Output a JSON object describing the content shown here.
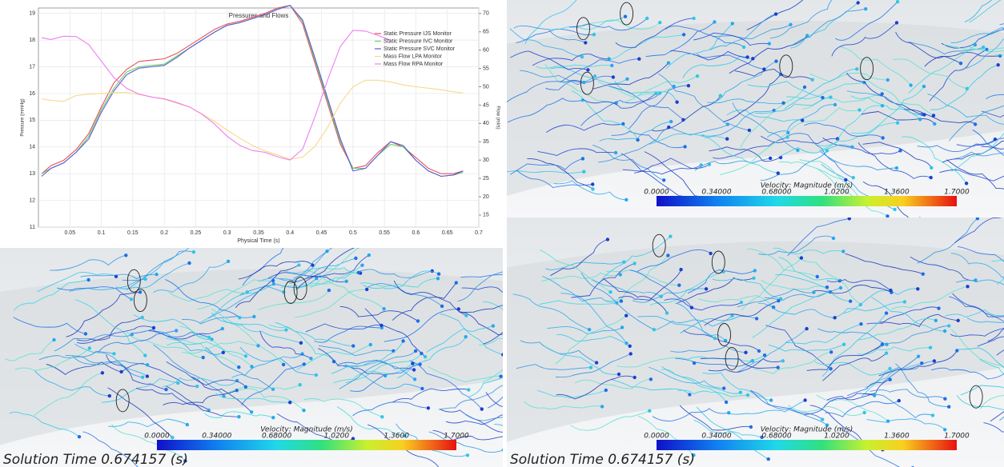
{
  "chart_data": {
    "type": "line",
    "title": "Pressures and Flows",
    "x_label": "Physical Time (s)",
    "y_label": "Pressure (mmHg)",
    "y2_label": "Flow (ml/s)",
    "x": [
      0.005,
      0.02,
      0.04,
      0.06,
      0.08,
      0.1,
      0.12,
      0.14,
      0.16,
      0.18,
      0.2,
      0.22,
      0.24,
      0.26,
      0.28,
      0.3,
      0.32,
      0.34,
      0.36,
      0.38,
      0.4,
      0.42,
      0.44,
      0.46,
      0.48,
      0.5,
      0.52,
      0.54,
      0.56,
      0.58,
      0.6,
      0.62,
      0.64,
      0.66,
      0.675
    ],
    "series": [
      {
        "name": "Static Pressure IJS Monitor",
        "color": "#e8505b",
        "values": [
          13.0,
          13.3,
          13.5,
          13.9,
          14.5,
          15.5,
          16.4,
          16.9,
          17.2,
          17.25,
          17.3,
          17.5,
          17.8,
          18.1,
          18.4,
          18.6,
          18.7,
          18.85,
          19.0,
          19.2,
          19.3,
          18.6,
          17.1,
          15.6,
          14.1,
          13.2,
          13.3,
          13.8,
          14.2,
          14.0,
          13.6,
          13.2,
          13.0,
          13.0,
          13.1
        ]
      },
      {
        "name": "Static Pressure IVC Monitor",
        "color": "#6ad06a",
        "values": [
          13.0,
          13.2,
          13.4,
          13.8,
          14.4,
          15.4,
          16.2,
          16.8,
          17.0,
          17.05,
          17.1,
          17.4,
          17.7,
          18.0,
          18.3,
          18.55,
          18.65,
          18.8,
          18.95,
          19.15,
          19.3,
          18.7,
          17.2,
          15.7,
          14.2,
          13.2,
          13.2,
          13.7,
          14.1,
          14.0,
          13.5,
          13.1,
          12.9,
          12.95,
          13.05
        ]
      },
      {
        "name": "Static Pressure SVC Monitor",
        "color": "#5a5ad8",
        "values": [
          12.9,
          13.2,
          13.4,
          13.8,
          14.3,
          15.3,
          16.1,
          16.7,
          16.95,
          17.0,
          17.05,
          17.35,
          17.7,
          18.0,
          18.3,
          18.55,
          18.65,
          18.8,
          18.95,
          19.15,
          19.3,
          18.75,
          17.3,
          15.8,
          14.3,
          13.1,
          13.2,
          13.7,
          14.2,
          14.05,
          13.5,
          13.1,
          12.9,
          12.95,
          13.1
        ]
      },
      {
        "name": "Mass Flow LPA Monitor",
        "color": "#f6d98a",
        "axis": "y2",
        "values": [
          46.7,
          46.3,
          46.0,
          47.6,
          48.0,
          48.2,
          48.4,
          48.4,
          47.9,
          47.2,
          46.6,
          45.5,
          44.5,
          42.6,
          40.5,
          38.2,
          36.0,
          34.0,
          32.5,
          31.4,
          30.2,
          30.8,
          33.8,
          39.0,
          45.5,
          50.0,
          51.8,
          51.8,
          51.3,
          50.5,
          50.0,
          49.6,
          49.2,
          48.6,
          48.3
        ]
      },
      {
        "name": "Mass Flow RPA Monitor",
        "color": "#f07ef0",
        "axis": "y2",
        "values": [
          63.4,
          62.9,
          63.8,
          63.7,
          61.5,
          57.0,
          52.5,
          49.6,
          48.0,
          47.2,
          46.7,
          45.7,
          44.5,
          42.5,
          39.8,
          36.5,
          34.0,
          32.6,
          32.1,
          30.9,
          30.0,
          33.0,
          42.0,
          52.0,
          61.0,
          65.4,
          65.2,
          64.0,
          62.7,
          null,
          null,
          null,
          null,
          null,
          null
        ]
      }
    ],
    "xlim": [
      0,
      0.7
    ],
    "xticks": [
      0.05,
      0.1,
      0.15,
      0.2,
      0.25,
      0.3,
      0.35,
      0.4,
      0.45,
      0.5,
      0.55,
      0.6,
      0.65,
      0.7
    ],
    "ylim": [
      11,
      19.2
    ],
    "yticks": [
      11,
      12,
      13,
      14,
      15,
      16,
      17,
      18,
      19
    ],
    "y2lim": [
      11.7,
      71.5
    ],
    "y2ticks": [
      15,
      20,
      25,
      30,
      35,
      40,
      45,
      50,
      55,
      60,
      65,
      70
    ],
    "legend": "upper right"
  },
  "panels": [
    {
      "colorbar_title": "Velocity: Magnitude (m/s)",
      "colorbar_labels": [
        "0.0000",
        "0.34000",
        "0.68000",
        "1.0200",
        "1.3600",
        "1.7000"
      ]
    },
    {
      "colorbar_title": "Velocity: Magnitude (m/s)",
      "colorbar_labels": [
        "0.0000",
        "0.34000",
        "0.68000",
        "1.0200",
        "1.3600",
        "1.7000"
      ],
      "caption": "Solution Time 0.674157 (s)"
    },
    {
      "colorbar_title": "Velocity: Magnitude (m/s)",
      "colorbar_labels": [
        "0.0000",
        "0.34000",
        "0.68000",
        "1.0200",
        "1.3600",
        "1.7000"
      ],
      "caption": "Solution Time 0.674157 (s)"
    }
  ]
}
